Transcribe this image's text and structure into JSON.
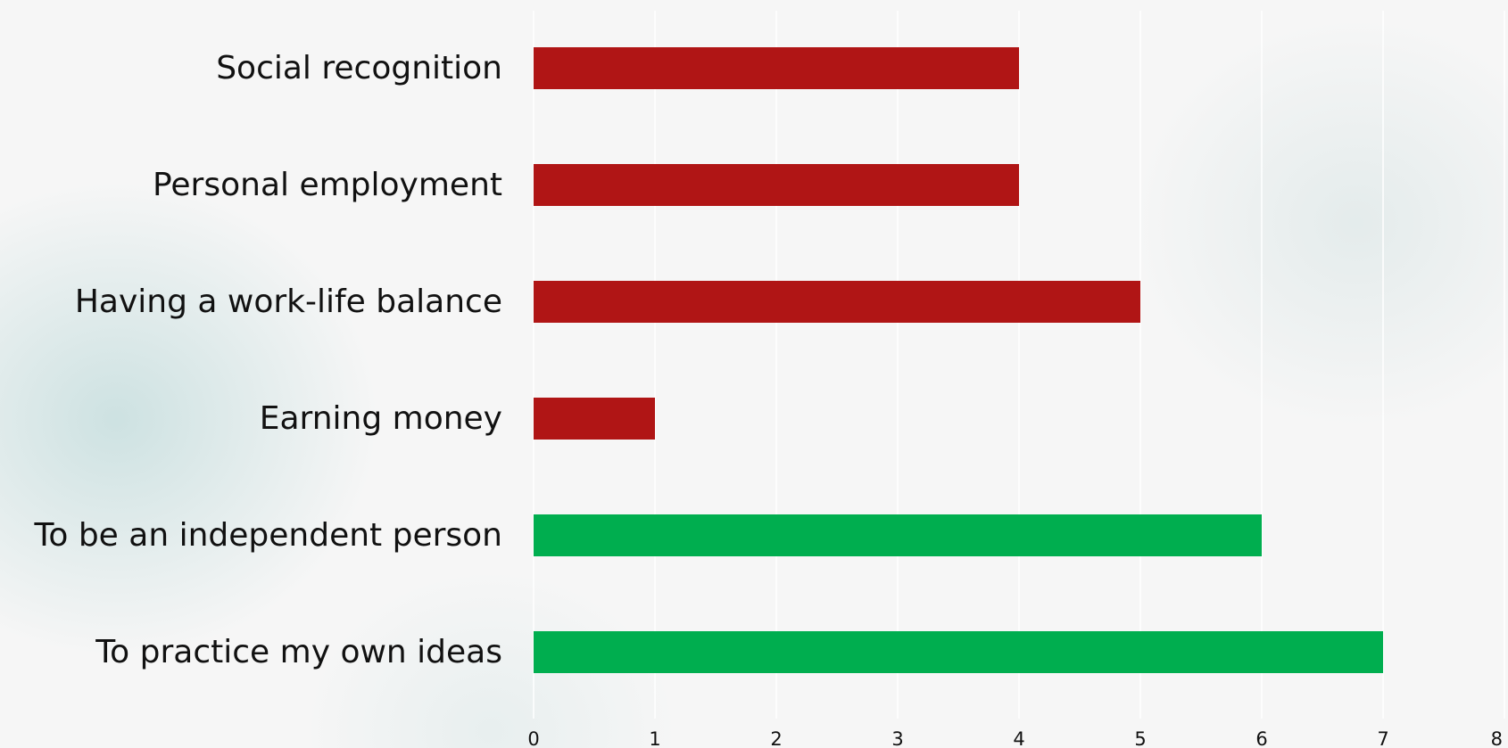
{
  "chart_data": {
    "type": "bar",
    "orientation": "horizontal",
    "categories": [
      "Social recognition",
      "Personal employment",
      "Having a work-life balance",
      "Earning money",
      "To be an independent person",
      "To practice my own ideas"
    ],
    "values": [
      4,
      4,
      5,
      1,
      6,
      7
    ],
    "bar_colors": [
      "#b01515",
      "#b01515",
      "#b01515",
      "#b01515",
      "#00ae4f",
      "#00ae4f"
    ],
    "xlim": [
      0,
      8
    ],
    "x_ticks": [
      "0",
      "1",
      "2",
      "3",
      "4",
      "5",
      "6",
      "7",
      "8"
    ],
    "title": "",
    "xlabel": "",
    "ylabel": "",
    "grid": "vertical",
    "legend": "none"
  },
  "colors": {
    "background": "#f6f6f6",
    "gridline": "#ffffff",
    "text": "#111111"
  }
}
